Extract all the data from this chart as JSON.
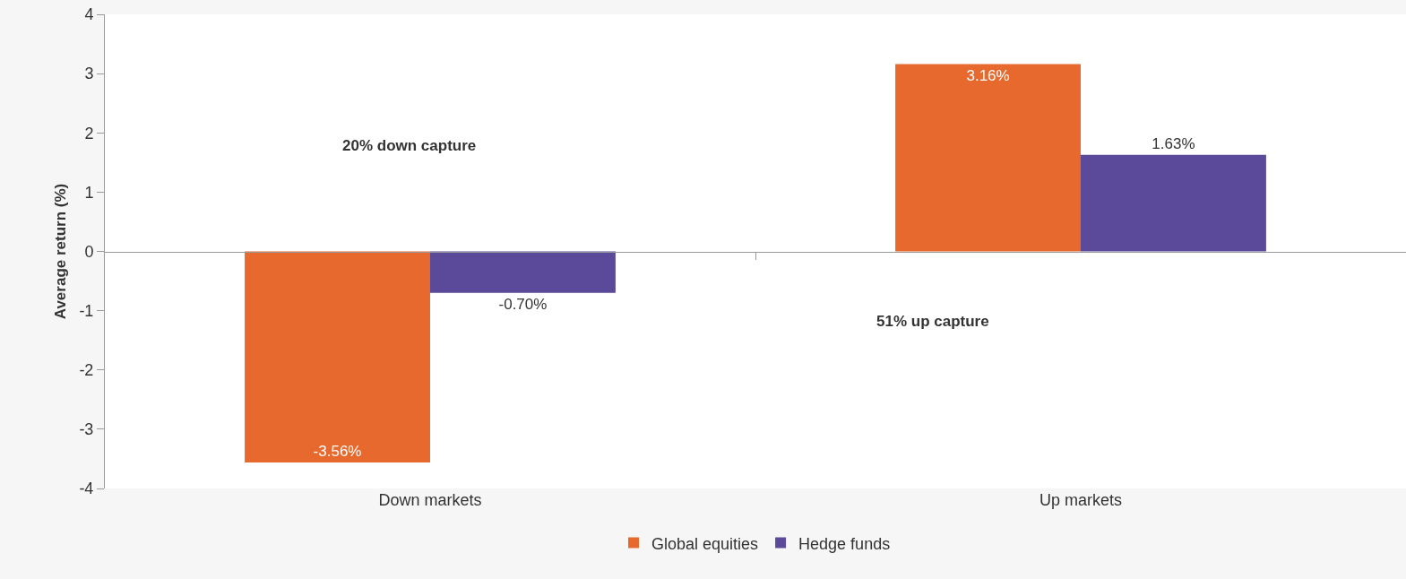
{
  "chart_data": {
    "type": "bar",
    "ylabel": "Average return (%)",
    "categories": [
      "Down markets",
      "Up markets"
    ],
    "series": [
      {
        "name": "Global equities",
        "color": "#e8692d",
        "values": [
          -3.56,
          3.16
        ],
        "value_labels": [
          "-3.56%",
          "3.16%"
        ]
      },
      {
        "name": "Hedge funds",
        "color": "#5b4a99",
        "values": [
          -0.7,
          1.63
        ],
        "value_labels": [
          "-0.70%",
          "1.63%"
        ]
      }
    ],
    "ylim": [
      -4,
      4
    ],
    "yticks": [
      -4,
      -3,
      -2,
      -1,
      0,
      1,
      2,
      3,
      4
    ],
    "legend": "bottom",
    "annotations": [
      "20% down capture",
      "51% up capture"
    ]
  }
}
